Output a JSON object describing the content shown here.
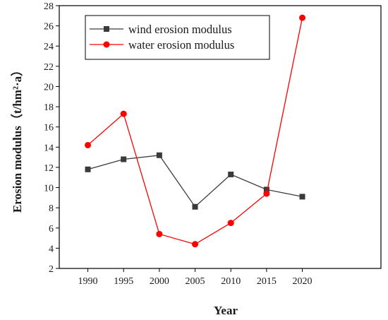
{
  "chart_data": {
    "type": "line",
    "title": "",
    "xlabel": "Year",
    "ylabel": "Erosion modulus（t/hm²·a）",
    "x": [
      1990,
      1995,
      2000,
      2005,
      2010,
      2015,
      2020
    ],
    "x_tick_labels": [
      "1990",
      "1995",
      "2000",
      "2005",
      "2010",
      "2015",
      "2020"
    ],
    "xlim": [
      1986,
      2031
    ],
    "ylim": [
      2,
      28
    ],
    "y_ticks": [
      2,
      4,
      6,
      8,
      10,
      12,
      14,
      16,
      18,
      20,
      22,
      24,
      26,
      28
    ],
    "grid": false,
    "legend_position": "top-left",
    "series": [
      {
        "name": "wind erosion modulus",
        "values": [
          11.8,
          12.8,
          13.2,
          8.1,
          11.3,
          9.8,
          9.1
        ],
        "color": "#3a3a3a",
        "marker": "square"
      },
      {
        "name": "water erosion modulus",
        "values": [
          14.2,
          17.3,
          5.4,
          4.4,
          6.5,
          9.4,
          26.8
        ],
        "color": "#ff0000",
        "marker": "circle"
      }
    ]
  }
}
